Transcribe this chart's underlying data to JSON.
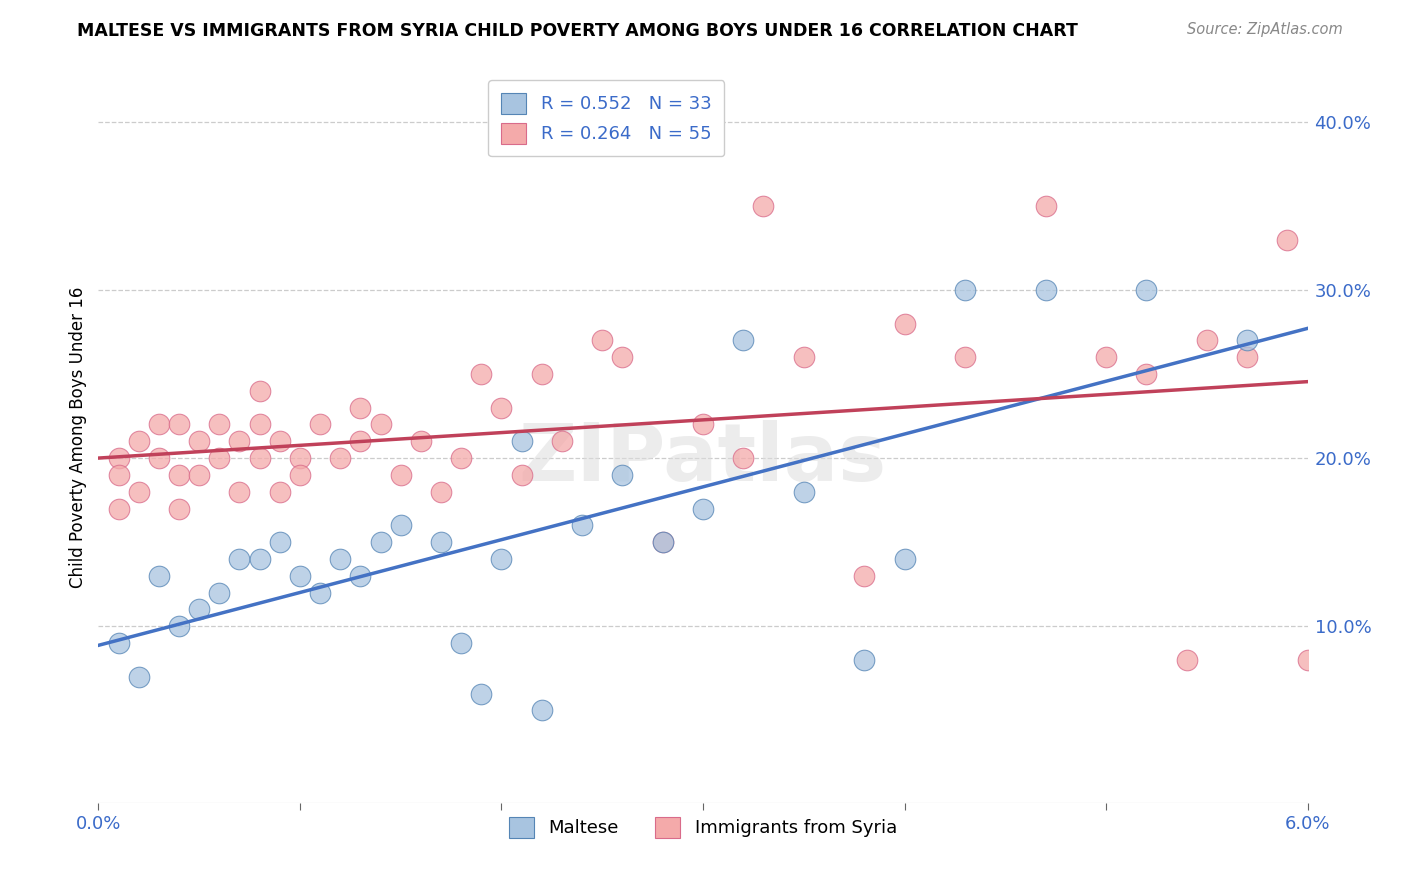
{
  "title": "MALTESE VS IMMIGRANTS FROM SYRIA CHILD POVERTY AMONG BOYS UNDER 16 CORRELATION CHART",
  "source": "Source: ZipAtlas.com",
  "ylabel": "Child Poverty Among Boys Under 16",
  "ylabel_right_ticks": [
    "10.0%",
    "20.0%",
    "30.0%",
    "40.0%"
  ],
  "ylabel_right_vals": [
    0.1,
    0.2,
    0.3,
    0.4
  ],
  "xlim": [
    0.0,
    0.06
  ],
  "ylim": [
    -0.005,
    0.43
  ],
  "legend_blue_label": "R = 0.552   N = 33",
  "legend_pink_label": "R = 0.264   N = 55",
  "legend_label_maltese": "Maltese",
  "legend_label_syria": "Immigrants from Syria",
  "blue_fill": "#A8C4E0",
  "blue_edge": "#5585B5",
  "pink_fill": "#F4AAAA",
  "pink_edge": "#D96B8A",
  "line_blue": "#4472C4",
  "line_pink": "#C0415A",
  "grid_color": "#CCCCCC",
  "watermark": "ZIPatlas",
  "blue_x": [
    0.001,
    0.002,
    0.003,
    0.004,
    0.005,
    0.006,
    0.007,
    0.008,
    0.009,
    0.01,
    0.011,
    0.012,
    0.013,
    0.014,
    0.015,
    0.017,
    0.018,
    0.019,
    0.02,
    0.021,
    0.022,
    0.024,
    0.026,
    0.028,
    0.03,
    0.032,
    0.035,
    0.038,
    0.04,
    0.043,
    0.047,
    0.052,
    0.057
  ],
  "blue_y": [
    0.09,
    0.07,
    0.13,
    0.1,
    0.11,
    0.12,
    0.14,
    0.14,
    0.15,
    0.13,
    0.12,
    0.14,
    0.13,
    0.15,
    0.16,
    0.15,
    0.09,
    0.06,
    0.14,
    0.21,
    0.05,
    0.16,
    0.19,
    0.15,
    0.17,
    0.27,
    0.18,
    0.08,
    0.14,
    0.3,
    0.3,
    0.3,
    0.27
  ],
  "pink_x": [
    0.001,
    0.001,
    0.001,
    0.002,
    0.002,
    0.003,
    0.003,
    0.004,
    0.004,
    0.004,
    0.005,
    0.005,
    0.006,
    0.006,
    0.007,
    0.007,
    0.008,
    0.008,
    0.008,
    0.009,
    0.009,
    0.01,
    0.01,
    0.011,
    0.012,
    0.013,
    0.013,
    0.014,
    0.015,
    0.016,
    0.017,
    0.018,
    0.019,
    0.02,
    0.021,
    0.022,
    0.023,
    0.025,
    0.026,
    0.028,
    0.03,
    0.032,
    0.033,
    0.035,
    0.038,
    0.04,
    0.043,
    0.047,
    0.05,
    0.052,
    0.054,
    0.055,
    0.057,
    0.059,
    0.06
  ],
  "pink_y": [
    0.2,
    0.19,
    0.17,
    0.21,
    0.18,
    0.2,
    0.22,
    0.22,
    0.19,
    0.17,
    0.21,
    0.19,
    0.22,
    0.2,
    0.21,
    0.18,
    0.22,
    0.2,
    0.24,
    0.21,
    0.18,
    0.2,
    0.19,
    0.22,
    0.2,
    0.23,
    0.21,
    0.22,
    0.19,
    0.21,
    0.18,
    0.2,
    0.25,
    0.23,
    0.19,
    0.25,
    0.21,
    0.27,
    0.26,
    0.15,
    0.22,
    0.2,
    0.35,
    0.26,
    0.13,
    0.28,
    0.26,
    0.35,
    0.26,
    0.25,
    0.08,
    0.27,
    0.26,
    0.33,
    0.08
  ]
}
